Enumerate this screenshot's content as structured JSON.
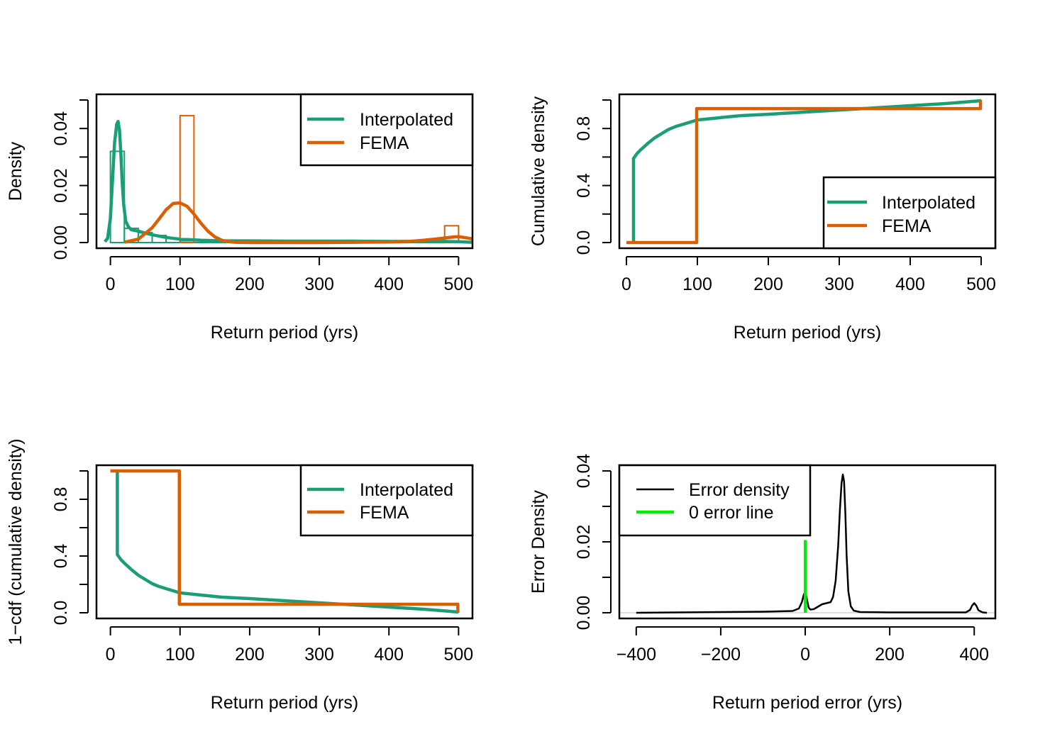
{
  "colors": {
    "interpolated": "#1b9e77",
    "fema": "#d95f02",
    "error_density": "#000000",
    "zero_line": "#00ee00",
    "baseline": "#bebebe"
  },
  "chart_data": [
    {
      "id": "density",
      "type": "histogram+density",
      "xlabel": "Return period (yrs)",
      "ylabel": "Density",
      "xlim": [
        -20,
        520
      ],
      "ylim": [
        0,
        0.05
      ],
      "xticks": [
        0,
        100,
        200,
        300,
        400,
        500
      ],
      "yticks": [
        0,
        0.01,
        0.02,
        0.03,
        0.04,
        0.05
      ],
      "yticklabels": [
        "0.00",
        "",
        "0.02",
        "",
        "0.04",
        ""
      ],
      "legend_position": "top-right",
      "legend": [
        {
          "label": "Interpolated",
          "color_key": "interpolated"
        },
        {
          "label": "FEMA",
          "color_key": "fema"
        }
      ],
      "histograms": [
        {
          "name": "Interpolated",
          "color_key": "interpolated",
          "bins": [
            [
              0,
              20,
              0.032
            ],
            [
              20,
              40,
              0.005
            ],
            [
              40,
              60,
              0.0035
            ],
            [
              60,
              80,
              0.0025
            ],
            [
              80,
              100,
              0.0015
            ],
            [
              100,
              200,
              0.0006
            ],
            [
              200,
              300,
              0.0003
            ],
            [
              300,
              400,
              0.0002
            ],
            [
              400,
              500,
              0.0002
            ]
          ]
        },
        {
          "name": "FEMA",
          "color_key": "fema",
          "bins": [
            [
              100,
              120,
              0.0445
            ],
            [
              480,
              500,
              0.0059
            ]
          ]
        }
      ],
      "series": [
        {
          "name": "Interpolated",
          "color_key": "interpolated",
          "x": [
            -8,
            -4,
            0,
            3,
            6,
            9,
            11,
            13,
            15,
            17,
            19,
            22,
            26,
            30,
            40,
            50,
            60,
            80,
            100,
            130,
            160,
            200,
            250,
            300,
            350,
            400,
            450,
            480,
            500,
            510,
            520
          ],
          "y": [
            0.0003,
            0.0015,
            0.0085,
            0.022,
            0.035,
            0.0415,
            0.0425,
            0.0395,
            0.031,
            0.021,
            0.0135,
            0.0075,
            0.0055,
            0.0045,
            0.004,
            0.0033,
            0.0027,
            0.0018,
            0.0012,
            0.0008,
            0.0006,
            0.0006,
            0.0005,
            0.0005,
            0.0005,
            0.0004,
            0.0004,
            0.0004,
            0.0003,
            0.0002,
            0.0001
          ]
        },
        {
          "name": "FEMA",
          "color_key": "fema",
          "x": [
            20,
            40,
            60,
            70,
            80,
            90,
            100,
            110,
            120,
            130,
            140,
            150,
            160,
            170,
            180,
            200,
            250,
            300,
            350,
            400,
            430,
            450,
            470,
            480,
            490,
            500,
            510,
            520
          ],
          "y": [
            0.0001,
            0.0012,
            0.0052,
            0.0083,
            0.0115,
            0.0137,
            0.0139,
            0.0127,
            0.01,
            0.0068,
            0.004,
            0.002,
            0.0008,
            0.0003,
            0.0001,
            0.0,
            0.0,
            0.0,
            0.0001,
            0.0002,
            0.0004,
            0.0008,
            0.0013,
            0.0016,
            0.0019,
            0.0021,
            0.0017,
            0.0013
          ]
        }
      ]
    },
    {
      "id": "cdf",
      "type": "line",
      "xlabel": "Return period (yrs)",
      "ylabel": "Cumulative density",
      "xlim": [
        -10,
        520
      ],
      "ylim": [
        0,
        1.0
      ],
      "xticks": [
        0,
        100,
        200,
        300,
        400,
        500
      ],
      "yticks": [
        0,
        0.2,
        0.4,
        0.6,
        0.8,
        1.0
      ],
      "yticklabels": [
        "0.0",
        "",
        "0.4",
        "",
        "0.8",
        ""
      ],
      "legend_position": "bottom-right",
      "legend": [
        {
          "label": "Interpolated",
          "color_key": "interpolated"
        },
        {
          "label": "FEMA",
          "color_key": "fema"
        }
      ],
      "series": [
        {
          "name": "Interpolated",
          "color_key": "interpolated",
          "x": [
            10,
            10,
            15,
            20,
            30,
            40,
            50,
            60,
            70,
            80,
            100,
            130,
            160,
            200,
            250,
            300,
            350,
            400,
            450,
            500
          ],
          "y": [
            0.0,
            0.59,
            0.625,
            0.65,
            0.695,
            0.735,
            0.765,
            0.795,
            0.815,
            0.83,
            0.86,
            0.875,
            0.89,
            0.9,
            0.915,
            0.93,
            0.945,
            0.96,
            0.975,
            0.995
          ]
        },
        {
          "name": "FEMA",
          "color_key": "fema",
          "x": [
            0,
            99,
            99,
            499,
            499
          ],
          "y": [
            0.0,
            0.0,
            0.94,
            0.94,
            1.0
          ]
        }
      ]
    },
    {
      "id": "exceedance",
      "type": "line",
      "xlabel": "Return period (yrs)",
      "ylabel": "1−cdf (cumulative density)",
      "xlim": [
        -20,
        520
      ],
      "ylim": [
        0,
        1.0
      ],
      "xticks": [
        0,
        100,
        200,
        300,
        400,
        500
      ],
      "yticks": [
        0,
        0.2,
        0.4,
        0.6,
        0.8,
        1.0
      ],
      "yticklabels": [
        "0.0",
        "",
        "0.4",
        "",
        "0.8",
        ""
      ],
      "legend_position": "top-right",
      "legend": [
        {
          "label": "Interpolated",
          "color_key": "interpolated"
        },
        {
          "label": "FEMA",
          "color_key": "fema"
        }
      ],
      "series": [
        {
          "name": "Interpolated",
          "color_key": "interpolated",
          "x": [
            9,
            10,
            10,
            15,
            20,
            30,
            40,
            50,
            60,
            70,
            80,
            100,
            130,
            160,
            200,
            250,
            300,
            350,
            400,
            450,
            500
          ],
          "y": [
            1.0,
            1.0,
            0.41,
            0.375,
            0.35,
            0.305,
            0.265,
            0.235,
            0.205,
            0.185,
            0.17,
            0.14,
            0.125,
            0.11,
            0.1,
            0.085,
            0.07,
            0.055,
            0.04,
            0.025,
            0.005
          ]
        },
        {
          "name": "FEMA",
          "color_key": "fema",
          "x": [
            0,
            99,
            99,
            499,
            499
          ],
          "y": [
            1.0,
            1.0,
            0.06,
            0.06,
            0.0
          ]
        }
      ]
    },
    {
      "id": "error",
      "type": "line",
      "xlabel": "Return period error (yrs)",
      "ylabel": "Error Density",
      "xlim": [
        -440,
        450
      ],
      "ylim": [
        0,
        0.04
      ],
      "xticks": [
        -400,
        -200,
        0,
        200,
        400
      ],
      "xticklabels": [
        "−400",
        "−200",
        "0",
        "200",
        "400"
      ],
      "yticks": [
        0,
        0.01,
        0.02,
        0.03,
        0.04
      ],
      "yticklabels": [
        "0.00",
        "",
        "0.02",
        "",
        "0.04"
      ],
      "legend_position": "top-left",
      "legend": [
        {
          "label": "Error density",
          "color_key": "error_density"
        },
        {
          "label": "0 error line",
          "color_key": "zero_line"
        }
      ],
      "zero_line": {
        "x": 0,
        "y": [
          0,
          0.0205
        ]
      },
      "series": [
        {
          "name": "Error density",
          "color_key": "error_density",
          "x": [
            -400,
            -300,
            -200,
            -100,
            -30,
            -15,
            -8,
            -3,
            0,
            3,
            8,
            12,
            20,
            30,
            40,
            50,
            60,
            66,
            72,
            78,
            82,
            86,
            89,
            92,
            95,
            98,
            102,
            108,
            115,
            130,
            200,
            300,
            380,
            390,
            395,
            400,
            405,
            410,
            420,
            430
          ],
          "y": [
            0.0,
            0.0001,
            0.0002,
            0.0003,
            0.0005,
            0.0012,
            0.003,
            0.0052,
            0.0058,
            0.0044,
            0.0015,
            0.0009,
            0.001,
            0.0017,
            0.0024,
            0.0027,
            0.003,
            0.0045,
            0.009,
            0.019,
            0.029,
            0.0365,
            0.039,
            0.037,
            0.028,
            0.016,
            0.006,
            0.0018,
            0.0006,
            0.0002,
            0.0001,
            0.0001,
            0.0001,
            0.0008,
            0.002,
            0.0027,
            0.002,
            0.0007,
            0.0001,
            0.0
          ]
        }
      ]
    }
  ]
}
